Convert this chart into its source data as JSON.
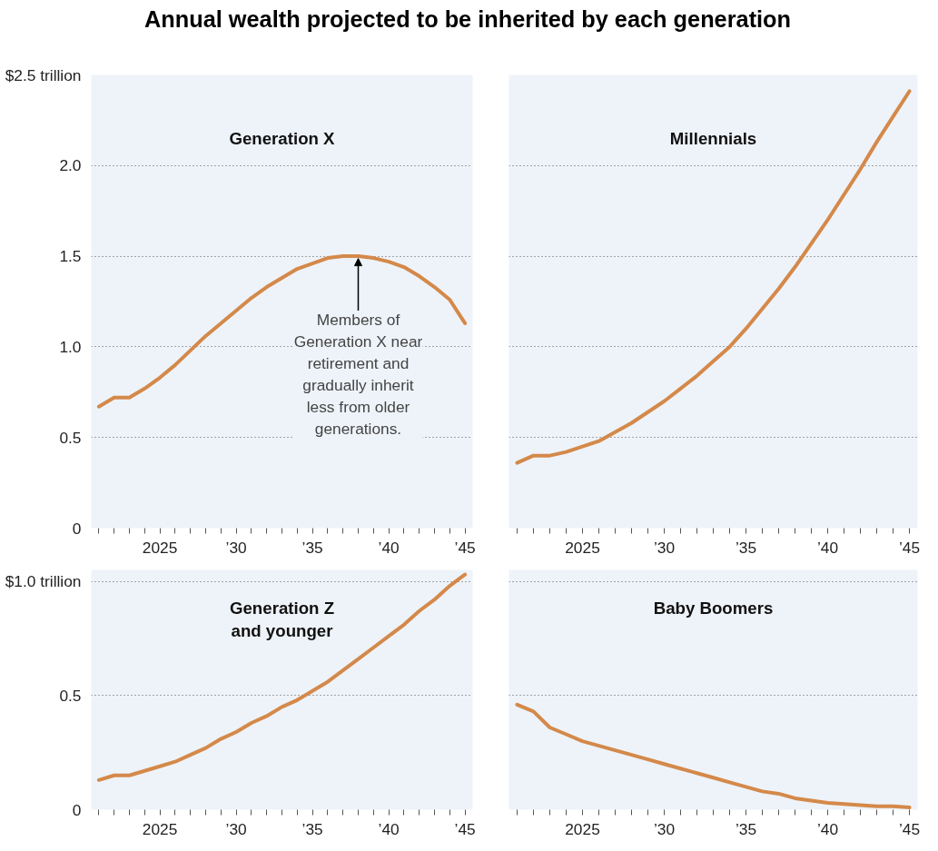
{
  "chart_data": [
    {
      "type": "line",
      "title": "Annual wealth projected to be inherited by each generation",
      "x": [
        2021,
        2022,
        2023,
        2024,
        2025,
        2026,
        2027,
        2028,
        2029,
        2030,
        2031,
        2032,
        2033,
        2034,
        2035,
        2036,
        2037,
        2038,
        2039,
        2040,
        2041,
        2042,
        2043,
        2044,
        2045
      ],
      "series": [
        {
          "name": "Generation X",
          "color": "#d4894a",
          "values": [
            0.67,
            0.72,
            0.72,
            0.77,
            0.83,
            0.9,
            0.98,
            1.06,
            1.13,
            1.2,
            1.27,
            1.33,
            1.38,
            1.43,
            1.46,
            1.49,
            1.5,
            1.5,
            1.49,
            1.47,
            1.44,
            1.39,
            1.33,
            1.26,
            1.13
          ]
        }
      ],
      "annotations": [
        {
          "text": "Members of\nGeneration X near\nretirement and\ngradually inherit\nless from older\ngenerations.",
          "x": 2038,
          "y": 1.5
        }
      ],
      "xlim": [
        2020.5,
        2045.5
      ],
      "ylim": [
        0,
        2.5
      ],
      "xticks": [
        {
          "value": 2021,
          "label": null
        },
        {
          "value": 2022,
          "label": null
        },
        {
          "value": 2023,
          "label": null
        },
        {
          "value": 2024,
          "label": null
        },
        {
          "value": 2025,
          "label": "2025"
        },
        {
          "value": 2026,
          "label": null
        },
        {
          "value": 2027,
          "label": null
        },
        {
          "value": 2028,
          "label": null
        },
        {
          "value": 2029,
          "label": null
        },
        {
          "value": 2030,
          "label": "’30"
        },
        {
          "value": 2031,
          "label": null
        },
        {
          "value": 2032,
          "label": null
        },
        {
          "value": 2033,
          "label": null
        },
        {
          "value": 2034,
          "label": null
        },
        {
          "value": 2035,
          "label": "’35"
        },
        {
          "value": 2036,
          "label": null
        },
        {
          "value": 2037,
          "label": null
        },
        {
          "value": 2038,
          "label": null
        },
        {
          "value": 2039,
          "label": null
        },
        {
          "value": 2040,
          "label": "’40"
        },
        {
          "value": 2041,
          "label": null
        },
        {
          "value": 2042,
          "label": null
        },
        {
          "value": 2043,
          "label": null
        },
        {
          "value": 2044,
          "label": null
        },
        {
          "value": 2045,
          "label": "’45"
        }
      ],
      "yticks": [
        0,
        0.5,
        {
          "value": 1,
          "label": "1.0"
        },
        1.5,
        {
          "value": 2,
          "label": "2.0"
        },
        {
          "value": 2.5,
          "label": "$2.5 trillion"
        }
      ],
      "grid": "y"
    },
    {
      "type": "line",
      "x": [
        2021,
        2022,
        2023,
        2024,
        2025,
        2026,
        2027,
        2028,
        2029,
        2030,
        2031,
        2032,
        2033,
        2034,
        2035,
        2036,
        2037,
        2038,
        2039,
        2040,
        2041,
        2042,
        2043,
        2044,
        2045
      ],
      "series": [
        {
          "name": "Millennials",
          "color": "#d4894a",
          "values": [
            0.36,
            0.4,
            0.4,
            0.42,
            0.45,
            0.48,
            0.53,
            0.58,
            0.64,
            0.7,
            0.77,
            0.84,
            0.92,
            1.0,
            1.1,
            1.21,
            1.32,
            1.44,
            1.57,
            1.7,
            1.84,
            1.98,
            2.13,
            2.27,
            2.41
          ]
        }
      ],
      "xlim": [
        2020.5,
        2045.5
      ],
      "ylim": [
        0,
        2.5
      ],
      "xticks": [
        {
          "value": 2021,
          "label": null
        },
        {
          "value": 2022,
          "label": null
        },
        {
          "value": 2023,
          "label": null
        },
        {
          "value": 2024,
          "label": null
        },
        {
          "value": 2025,
          "label": "2025"
        },
        {
          "value": 2026,
          "label": null
        },
        {
          "value": 2027,
          "label": null
        },
        {
          "value": 2028,
          "label": null
        },
        {
          "value": 2029,
          "label": null
        },
        {
          "value": 2030,
          "label": "’30"
        },
        {
          "value": 2031,
          "label": null
        },
        {
          "value": 2032,
          "label": null
        },
        {
          "value": 2033,
          "label": null
        },
        {
          "value": 2034,
          "label": null
        },
        {
          "value": 2035,
          "label": "’35"
        },
        {
          "value": 2036,
          "label": null
        },
        {
          "value": 2037,
          "label": null
        },
        {
          "value": 2038,
          "label": null
        },
        {
          "value": 2039,
          "label": null
        },
        {
          "value": 2040,
          "label": "’40"
        },
        {
          "value": 2041,
          "label": null
        },
        {
          "value": 2042,
          "label": null
        },
        {
          "value": 2043,
          "label": null
        },
        {
          "value": 2044,
          "label": null
        },
        {
          "value": 2045,
          "label": "’45"
        }
      ],
      "yticks": [
        0,
        0.5,
        1,
        1.5,
        2,
        2.5
      ],
      "grid": "y",
      "tick_labels": "x"
    },
    {
      "type": "line",
      "x": [
        2021,
        2022,
        2023,
        2024,
        2025,
        2026,
        2027,
        2028,
        2029,
        2030,
        2031,
        2032,
        2033,
        2034,
        2035,
        2036,
        2037,
        2038,
        2039,
        2040,
        2041,
        2042,
        2043,
        2044,
        2045
      ],
      "series": [
        {
          "name": "Generation Z\nand younger",
          "color": "#d4894a",
          "values": [
            0.13,
            0.15,
            0.15,
            0.17,
            0.19,
            0.21,
            0.24,
            0.27,
            0.31,
            0.34,
            0.38,
            0.41,
            0.45,
            0.48,
            0.52,
            0.56,
            0.61,
            0.66,
            0.71,
            0.76,
            0.81,
            0.87,
            0.92,
            0.98,
            1.03
          ]
        }
      ],
      "xlim": [
        2020.5,
        2045.5
      ],
      "ylim": [
        0,
        1.05
      ],
      "xticks": [
        {
          "value": 2021,
          "label": null
        },
        {
          "value": 2022,
          "label": null
        },
        {
          "value": 2023,
          "label": null
        },
        {
          "value": 2024,
          "label": null
        },
        {
          "value": 2025,
          "label": "2025"
        },
        {
          "value": 2026,
          "label": null
        },
        {
          "value": 2027,
          "label": null
        },
        {
          "value": 2028,
          "label": null
        },
        {
          "value": 2029,
          "label": null
        },
        {
          "value": 2030,
          "label": "’30"
        },
        {
          "value": 2031,
          "label": null
        },
        {
          "value": 2032,
          "label": null
        },
        {
          "value": 2033,
          "label": null
        },
        {
          "value": 2034,
          "label": null
        },
        {
          "value": 2035,
          "label": "’35"
        },
        {
          "value": 2036,
          "label": null
        },
        {
          "value": 2037,
          "label": null
        },
        {
          "value": 2038,
          "label": null
        },
        {
          "value": 2039,
          "label": null
        },
        {
          "value": 2040,
          "label": "’40"
        },
        {
          "value": 2041,
          "label": null
        },
        {
          "value": 2042,
          "label": null
        },
        {
          "value": 2043,
          "label": null
        },
        {
          "value": 2044,
          "label": null
        },
        {
          "value": 2045,
          "label": "’45"
        }
      ],
      "yticks": [
        0,
        0.5,
        {
          "value": 1.0,
          "label": "$1.0 trillion"
        }
      ],
      "grid": "y"
    },
    {
      "type": "line",
      "x": [
        2021,
        2022,
        2023,
        2024,
        2025,
        2026,
        2027,
        2028,
        2029,
        2030,
        2031,
        2032,
        2033,
        2034,
        2035,
        2036,
        2037,
        2038,
        2039,
        2040,
        2041,
        2042,
        2043,
        2044,
        2045
      ],
      "series": [
        {
          "name": "Baby Boomers",
          "color": "#d4894a",
          "values": [
            0.46,
            0.43,
            0.36,
            0.33,
            0.3,
            0.28,
            0.26,
            0.24,
            0.22,
            0.2,
            0.18,
            0.16,
            0.14,
            0.12,
            0.1,
            0.08,
            0.07,
            0.05,
            0.04,
            0.03,
            0.025,
            0.02,
            0.015,
            0.015,
            0.01
          ]
        }
      ],
      "xlim": [
        2020.5,
        2045.5
      ],
      "ylim": [
        0,
        1.05
      ],
      "xticks": [
        {
          "value": 2021,
          "label": null
        },
        {
          "value": 2022,
          "label": null
        },
        {
          "value": 2023,
          "label": null
        },
        {
          "value": 2024,
          "label": null
        },
        {
          "value": 2025,
          "label": "2025"
        },
        {
          "value": 2026,
          "label": null
        },
        {
          "value": 2027,
          "label": null
        },
        {
          "value": 2028,
          "label": null
        },
        {
          "value": 2029,
          "label": null
        },
        {
          "value": 2030,
          "label": "’30"
        },
        {
          "value": 2031,
          "label": null
        },
        {
          "value": 2032,
          "label": null
        },
        {
          "value": 2033,
          "label": null
        },
        {
          "value": 2034,
          "label": null
        },
        {
          "value": 2035,
          "label": "’35"
        },
        {
          "value": 2036,
          "label": null
        },
        {
          "value": 2037,
          "label": null
        },
        {
          "value": 2038,
          "label": null
        },
        {
          "value": 2039,
          "label": null
        },
        {
          "value": 2040,
          "label": "’40"
        },
        {
          "value": 2041,
          "label": null
        },
        {
          "value": 2042,
          "label": null
        },
        {
          "value": 2043,
          "label": null
        },
        {
          "value": 2044,
          "label": null
        },
        {
          "value": 2045,
          "label": "’45"
        }
      ],
      "yticks": [
        0,
        0.5,
        1
      ],
      "grid": "y",
      "tick_labels": "x"
    }
  ]
}
